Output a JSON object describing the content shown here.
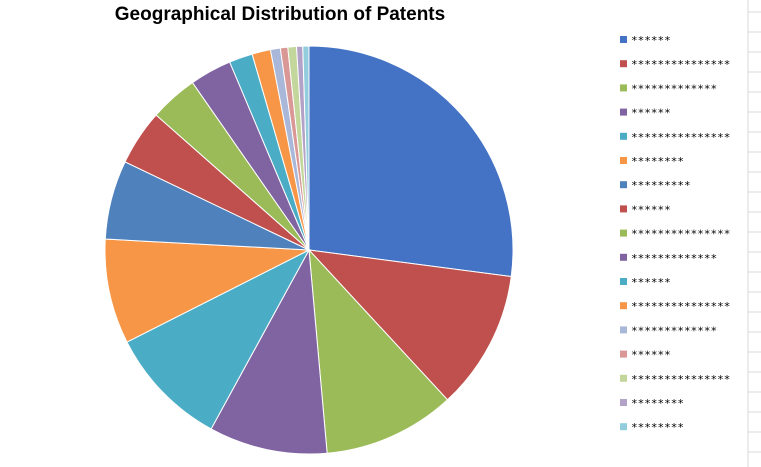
{
  "chart_data": {
    "type": "pie",
    "title": "Geographical Distribution of Patents",
    "legend_position": "right",
    "slices": [
      {
        "label": "******",
        "value": 27.7,
        "color": "#4472c4"
      },
      {
        "label": "***************",
        "value": 11.3,
        "color": "#c0504d"
      },
      {
        "label": "*************",
        "value": 10.7,
        "color": "#9bbb59"
      },
      {
        "label": "******",
        "value": 9.6,
        "color": "#8064a2"
      },
      {
        "label": "***************",
        "value": 9.8,
        "color": "#4bacc6"
      },
      {
        "label": "********",
        "value": 8.5,
        "color": "#f79646"
      },
      {
        "label": "*********",
        "value": 6.4,
        "color": "#4f81bd"
      },
      {
        "label": "******",
        "value": 4.5,
        "color": "#c0504d"
      },
      {
        "label": "***************",
        "value": 3.9,
        "color": "#9bbb59"
      },
      {
        "label": "*************",
        "value": 3.4,
        "color": "#8064a2"
      },
      {
        "label": "******",
        "value": 1.9,
        "color": "#4bacc6"
      },
      {
        "label": "***************",
        "value": 1.5,
        "color": "#f79646"
      },
      {
        "label": "*************",
        "value": 0.8,
        "color": "#a9b8d9"
      },
      {
        "label": "******",
        "value": 0.6,
        "color": "#d99795"
      },
      {
        "label": "***************",
        "value": 0.7,
        "color": "#c3d69b"
      },
      {
        "label": "********",
        "value": 0.5,
        "color": "#b3a2c7"
      },
      {
        "label": "********",
        "value": 0.5,
        "color": "#93cddd"
      }
    ]
  }
}
